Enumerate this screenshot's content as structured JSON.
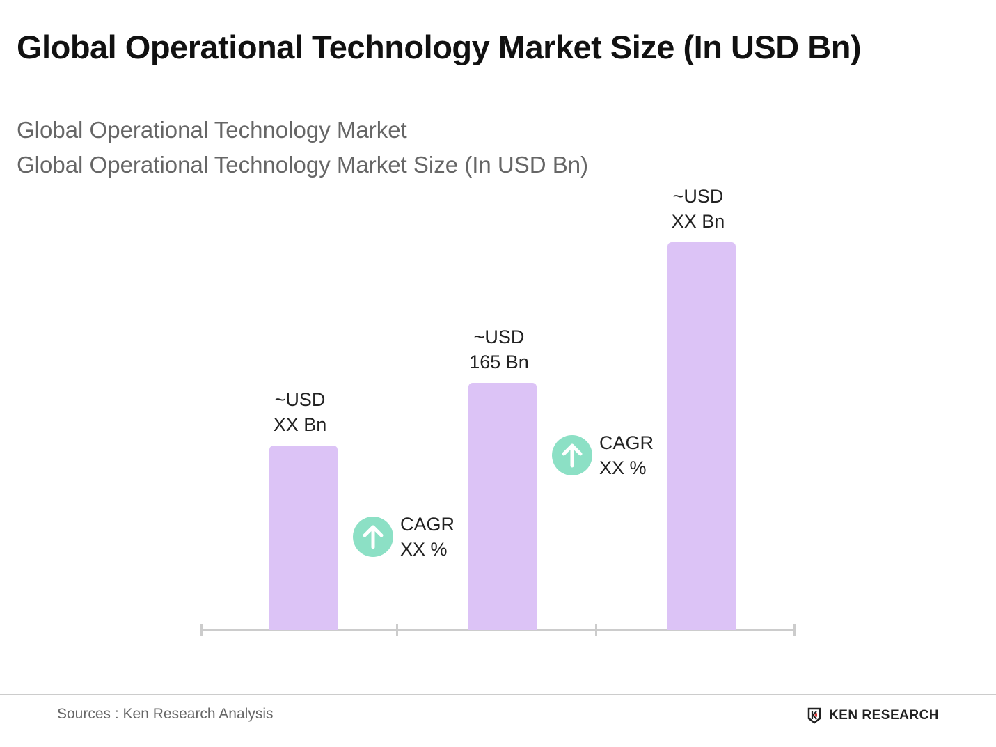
{
  "title": "Global Operational Technology Market Size (In USD Bn)",
  "subtitle1": "Global Operational Technology Market",
  "subtitle2": "Global Operational Technology Market Size (In USD Bn)",
  "chart_data": {
    "type": "bar",
    "title": "Global Operational Technology Market Size (In USD Bn)",
    "categories": [
      "",
      "",
      ""
    ],
    "values": [
      123,
      165,
      259
    ],
    "data_labels": [
      [
        "~USD",
        "XX Bn"
      ],
      [
        "~USD",
        "165 Bn"
      ],
      [
        "~USD",
        "XX Bn"
      ]
    ],
    "annotations": [
      {
        "icon": "arrow-up-icon",
        "lines": [
          "CAGR",
          "XX %"
        ]
      },
      {
        "icon": "arrow-up-icon",
        "lines": [
          "CAGR",
          "XX %"
        ]
      }
    ],
    "grid": false,
    "bar_color": "#dcc3f6",
    "cagr_color": "#8ce0c5"
  },
  "footer": {
    "source": "Sources : Ken Research Analysis",
    "logo_text": "KEN RESEARCH"
  }
}
